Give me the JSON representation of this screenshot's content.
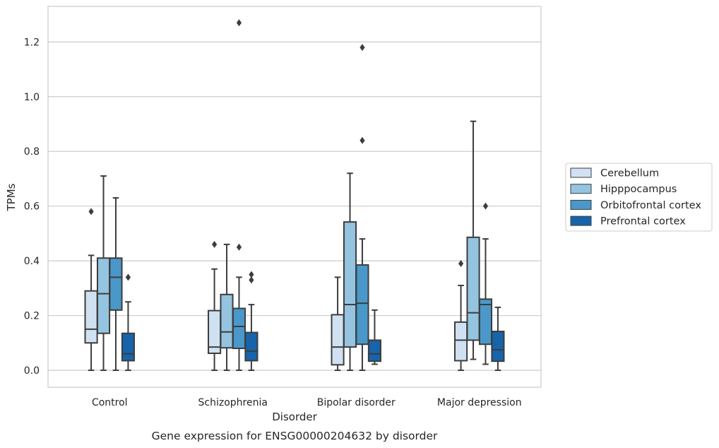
{
  "chart_data": {
    "type": "box",
    "caption": "Gene expression for ENSG00000204632 by disorder",
    "xlabel": "Disorder",
    "ylabel": "TPMs",
    "ylim": [
      -0.062,
      1.33
    ],
    "yticks": [
      0.0,
      0.2,
      0.4,
      0.6,
      0.8,
      1.0,
      1.2
    ],
    "ytick_labels": [
      "0.0",
      "0.2",
      "0.4",
      "0.6",
      "0.8",
      "1.0",
      "1.2"
    ],
    "grid": "horizontal",
    "legend_position": "right",
    "categories": [
      "Control",
      "Schizophrenia",
      "Bipolar disorder",
      "Major depression"
    ],
    "series": [
      {
        "name": "Cerebellum",
        "color": "#d0e1f2",
        "boxes": [
          {
            "whisker_low": 0.0,
            "q1": 0.1,
            "median": 0.15,
            "q3": 0.29,
            "whisker_high": 0.42,
            "outliers": [
              0.58
            ]
          },
          {
            "whisker_low": 0.0,
            "q1": 0.062,
            "median": 0.085,
            "q3": 0.218,
            "whisker_high": 0.37,
            "outliers": [
              0.46
            ]
          },
          {
            "whisker_low": 0.0,
            "q1": 0.02,
            "median": 0.085,
            "q3": 0.203,
            "whisker_high": 0.34,
            "outliers": []
          },
          {
            "whisker_low": 0.0,
            "q1": 0.035,
            "median": 0.11,
            "q3": 0.176,
            "whisker_high": 0.31,
            "outliers": [
              0.39
            ]
          }
        ]
      },
      {
        "name": "Hipppocampus",
        "color": "#94c4df",
        "boxes": [
          {
            "whisker_low": 0.0,
            "q1": 0.135,
            "median": 0.28,
            "q3": 0.41,
            "whisker_high": 0.71,
            "outliers": []
          },
          {
            "whisker_low": 0.0,
            "q1": 0.082,
            "median": 0.14,
            "q3": 0.277,
            "whisker_high": 0.46,
            "outliers": []
          },
          {
            "whisker_low": 0.0,
            "q1": 0.085,
            "median": 0.24,
            "q3": 0.542,
            "whisker_high": 0.72,
            "outliers": []
          },
          {
            "whisker_low": 0.04,
            "q1": 0.11,
            "median": 0.21,
            "q3": 0.486,
            "whisker_high": 0.91,
            "outliers": []
          }
        ]
      },
      {
        "name": "Orbitofrontal cortex",
        "color": "#4a98c9",
        "boxes": [
          {
            "whisker_low": 0.0,
            "q1": 0.22,
            "median": 0.34,
            "q3": 0.41,
            "whisker_high": 0.63,
            "outliers": []
          },
          {
            "whisker_low": 0.0,
            "q1": 0.08,
            "median": 0.16,
            "q3": 0.226,
            "whisker_high": 0.34,
            "outliers": [
              0.45,
              1.27
            ]
          },
          {
            "whisker_low": 0.0,
            "q1": 0.095,
            "median": 0.245,
            "q3": 0.385,
            "whisker_high": 0.48,
            "outliers": [
              0.84,
              1.18
            ]
          },
          {
            "whisker_low": 0.022,
            "q1": 0.095,
            "median": 0.24,
            "q3": 0.26,
            "whisker_high": 0.48,
            "outliers": [
              0.6
            ]
          }
        ]
      },
      {
        "name": "Prefrontal cortex",
        "color": "#1764ab",
        "boxes": [
          {
            "whisker_low": 0.0,
            "q1": 0.035,
            "median": 0.06,
            "q3": 0.135,
            "whisker_high": 0.25,
            "outliers": [
              0.34
            ]
          },
          {
            "whisker_low": 0.0,
            "q1": 0.035,
            "median": 0.07,
            "q3": 0.138,
            "whisker_high": 0.24,
            "outliers": [
              0.33,
              0.35
            ]
          },
          {
            "whisker_low": 0.022,
            "q1": 0.033,
            "median": 0.06,
            "q3": 0.11,
            "whisker_high": 0.22,
            "outliers": []
          },
          {
            "whisker_low": 0.0,
            "q1": 0.033,
            "median": 0.075,
            "q3": 0.142,
            "whisker_high": 0.23,
            "outliers": []
          }
        ]
      }
    ]
  },
  "colors": {
    "box_edge": "#3d3d3d",
    "grid": "#cccccc",
    "axes_edge": "#cccccc",
    "text": "#262626"
  }
}
